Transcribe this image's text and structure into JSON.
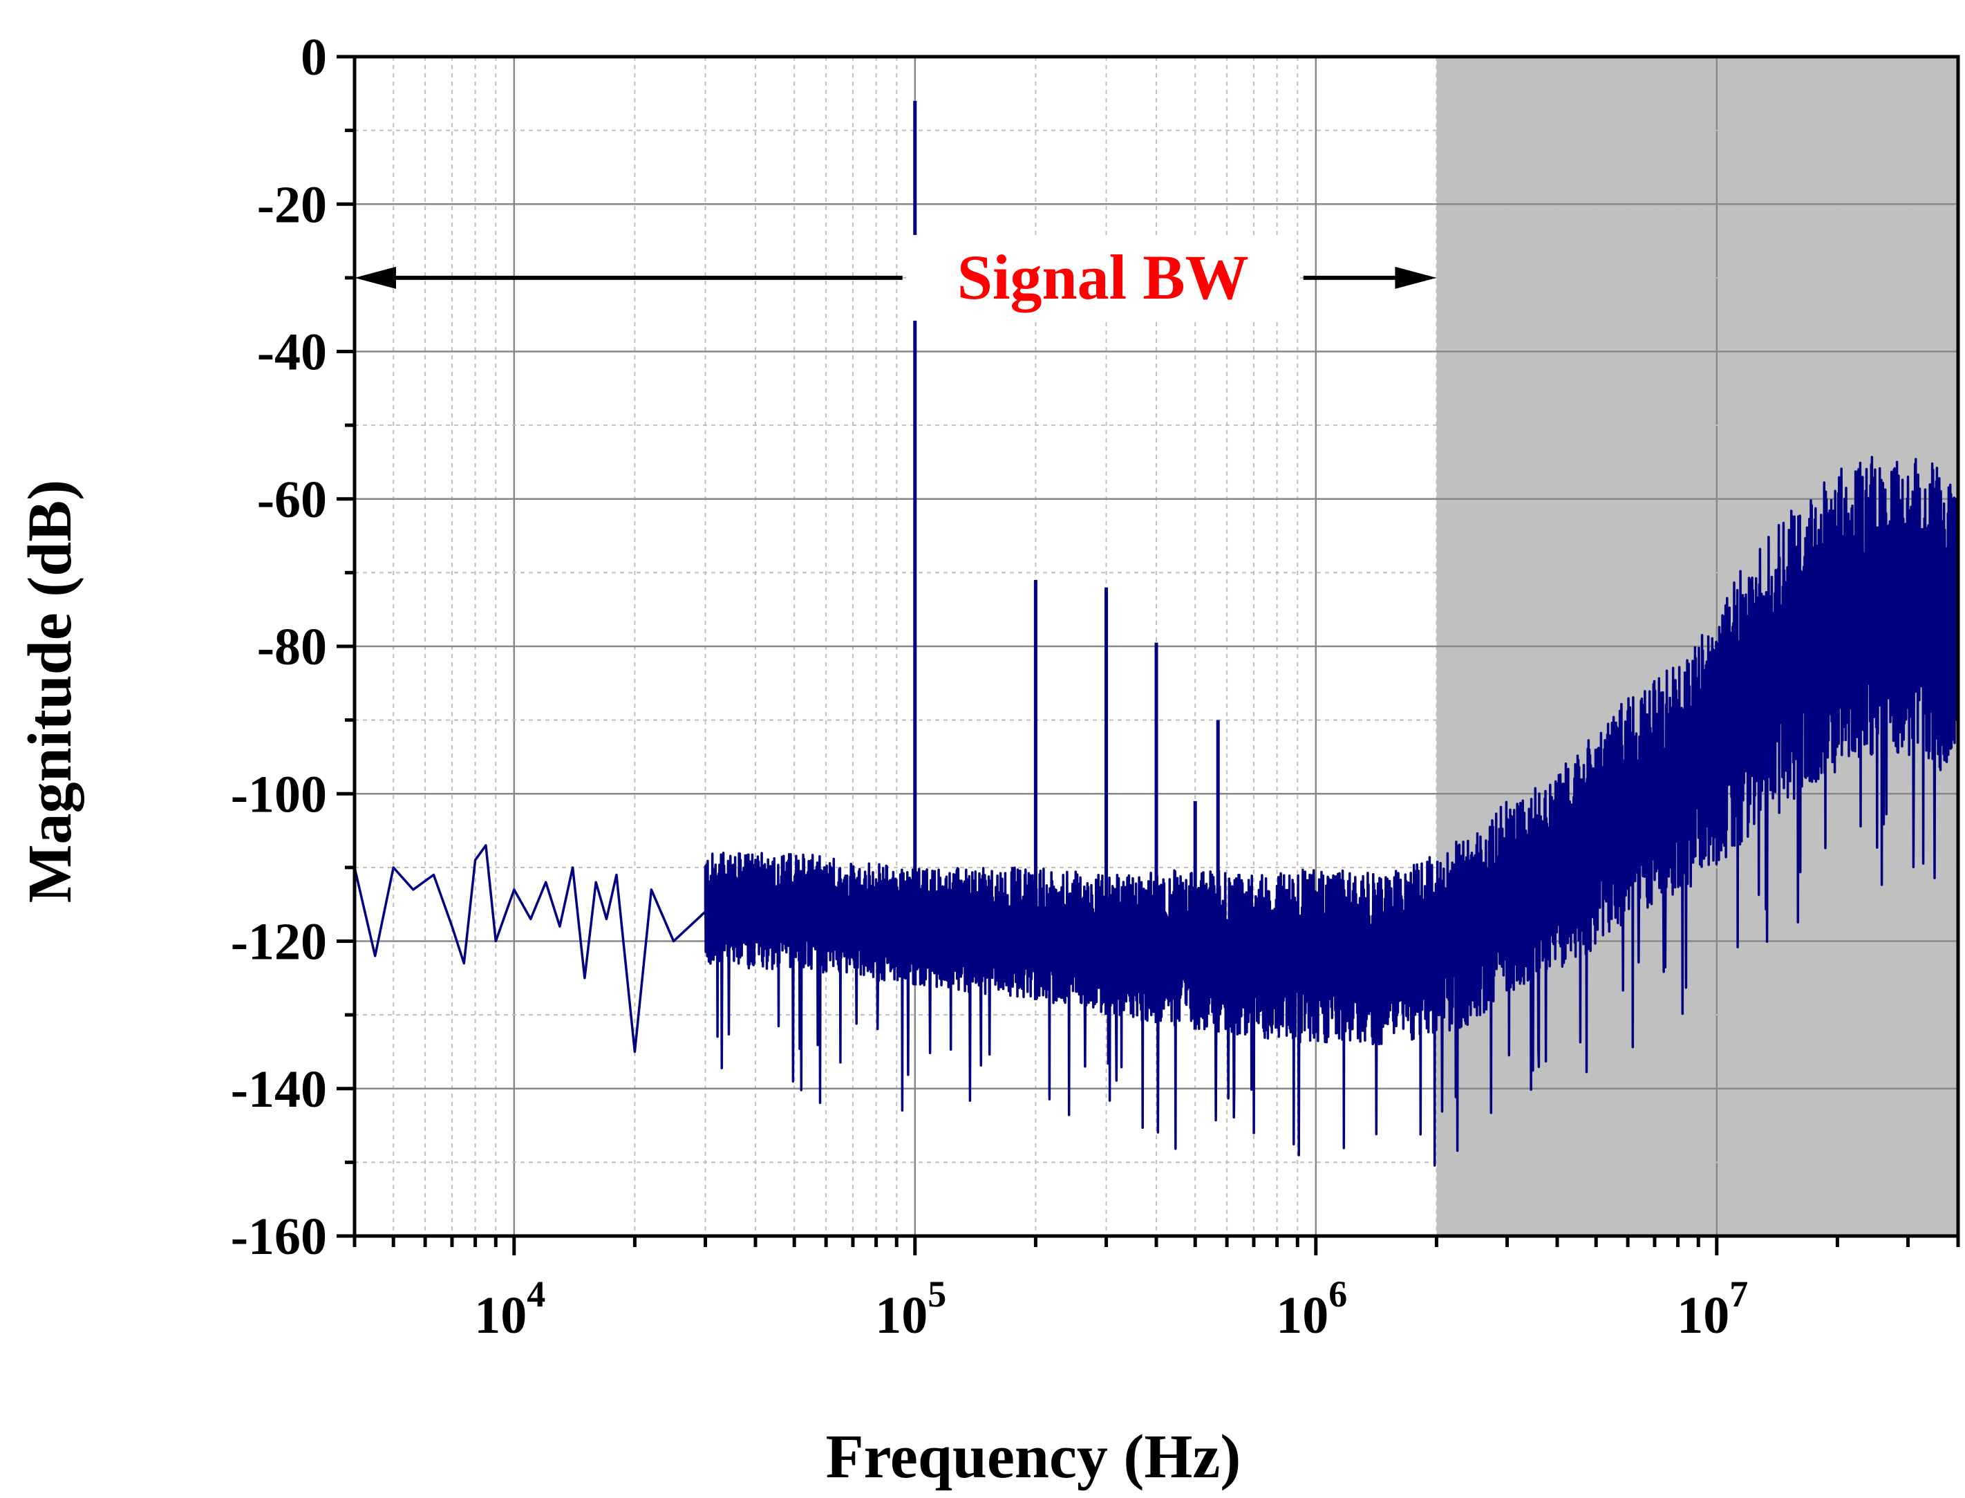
{
  "chart_data": {
    "type": "line",
    "title": "",
    "xlabel": "Frequency (Hz)",
    "ylabel": "Magnitude (dB)",
    "x_scale": "log",
    "xlim": [
      4000,
      40000000
    ],
    "ylim": [
      -160,
      0
    ],
    "x_ticks": [
      {
        "value": 10000,
        "base": "10",
        "exp": "4"
      },
      {
        "value": 100000,
        "base": "10",
        "exp": "5"
      },
      {
        "value": 1000000,
        "base": "10",
        "exp": "6"
      },
      {
        "value": 10000000,
        "base": "10",
        "exp": "7"
      }
    ],
    "y_ticks": [
      {
        "value": 0,
        "label": "0"
      },
      {
        "value": -20,
        "label": "-20"
      },
      {
        "value": -40,
        "label": "-40"
      },
      {
        "value": -60,
        "label": "-60"
      },
      {
        "value": -80,
        "label": "-80"
      },
      {
        "value": -100,
        "label": "-100"
      },
      {
        "value": -120,
        "label": "-120"
      },
      {
        "value": -140,
        "label": "-140"
      },
      {
        "value": -160,
        "label": "-160"
      }
    ],
    "grid": true,
    "series": [
      {
        "color": "#000080",
        "x": [
          4000,
          4500,
          5000,
          5600,
          6300,
          7000,
          7500,
          8000,
          8500,
          9000,
          10000,
          11000,
          12000,
          13000,
          14000,
          15000,
          16000,
          17000,
          18000,
          20000,
          22000,
          25000,
          30000,
          35000,
          40000,
          50000,
          60000,
          70000,
          80000,
          90000,
          100000,
          110000,
          130000,
          150000,
          200000,
          250000,
          300000,
          400000,
          500000,
          600000,
          700000,
          800000,
          1000000,
          1200000,
          1500000,
          2000000,
          2500000,
          3000000,
          4000000,
          5000000,
          6000000,
          8000000,
          10000000,
          12000000,
          15000000,
          18000000,
          20000000,
          25000000,
          30000000,
          35000000,
          40000000
        ],
        "y": [
          -110,
          -122,
          -110,
          -113,
          -111,
          -118,
          -123,
          -109,
          -107,
          -120,
          -113,
          -117,
          -112,
          -118,
          -110,
          -125,
          -112,
          -117,
          -111,
          -135,
          -113,
          -120,
          -116,
          -113,
          -117,
          -114,
          -118,
          -116,
          -120,
          -119,
          -118,
          -118,
          -120,
          -119,
          -120,
          -120,
          -121,
          -121,
          -121,
          -121,
          -120,
          -119,
          -118,
          -116,
          -113,
          -106,
          -102,
          -97,
          -92,
          -88,
          -83,
          -76,
          -70,
          -67,
          -63,
          -61,
          -62,
          -62,
          -64,
          -65,
          -65
        ],
        "envelope_upper": [
          -110,
          -107,
          -108,
          -108,
          -110,
          -110,
          -111,
          -110,
          -111,
          -110,
          -111,
          -108,
          -105,
          -101,
          -97,
          -91,
          -87,
          -82,
          -75,
          -68,
          -62,
          -58,
          -56,
          -55,
          -54,
          -54,
          -55,
          -56
        ],
        "envelope_lower": [
          -122,
          -123,
          -123,
          -124,
          -126,
          -128,
          -130,
          -132,
          -133,
          -134,
          -134,
          -133,
          -131,
          -127,
          -124,
          -121,
          -117,
          -114,
          -110,
          -106,
          -102,
          -99,
          -97,
          -96,
          -95,
          -96,
          -97,
          -98
        ],
        "envelope_x": [
          4000,
          10000,
          20000,
          50000,
          100000,
          200000,
          300000,
          500000,
          700000,
          1000000,
          1500000,
          2000000,
          2500000,
          3000000,
          4000000,
          5000000,
          6000000,
          8000000,
          10000000,
          12000000,
          15000000,
          18000000,
          20000000,
          22000000,
          25000000,
          30000000,
          35000000,
          40000000
        ],
        "peaks": [
          {
            "x": 100000,
            "y": -6
          },
          {
            "x": 200000,
            "y": -71
          },
          {
            "x": 300000,
            "y": -72
          },
          {
            "x": 400000,
            "y": -79.5
          },
          {
            "x": 500000,
            "y": -101
          },
          {
            "x": 570000,
            "y": -90
          }
        ]
      }
    ],
    "shaded_region": {
      "x_start": 2000000,
      "x_end": 40000000,
      "color": "#c0c0c0"
    },
    "annotation": {
      "label": "Signal BW",
      "label_color": "#ff0000",
      "y": -30,
      "x_start": 4000,
      "x_end": 2000000
    }
  }
}
